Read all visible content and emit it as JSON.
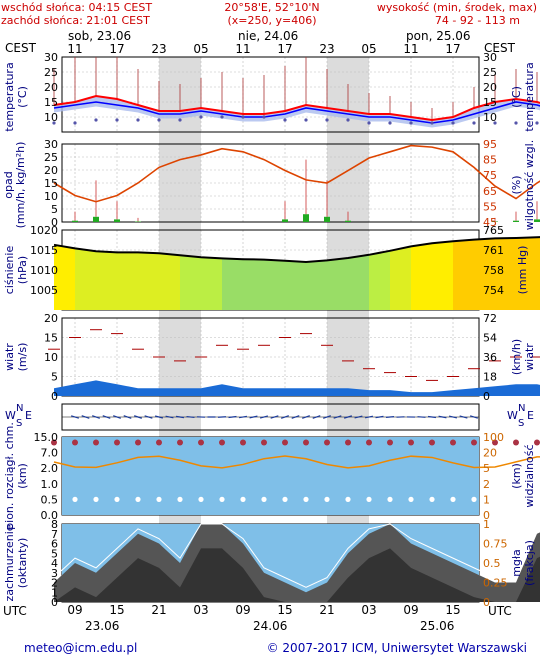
{
  "header": {
    "sunrise": "wschód słońca: 04:15 CEST",
    "sunset": "zachód słońca: 21:01 CEST",
    "coords": "20°58'E, 52°10'N",
    "grid": "(x=250,  y=406)",
    "elev_title": "wysokość (min, środek, max)",
    "elev_values": "74 - 92 - 113 m"
  },
  "time_top": {
    "tz": "CEST",
    "days": [
      "sob, 23.06",
      "nie, 24.06",
      "pon, 25.06"
    ],
    "hours": [
      "11",
      "17",
      "23",
      "05",
      "11",
      "17",
      "23",
      "05",
      "11",
      "17"
    ]
  },
  "time_bottom": {
    "tz": "UTC",
    "hours": [
      "09",
      "15",
      "21",
      "03",
      "09",
      "15",
      "21",
      "03",
      "09",
      "15"
    ],
    "dates": [
      "23.06",
      "24.06",
      "25.06"
    ]
  },
  "panels": {
    "temperature": {
      "label_left": "temperatura",
      "unit_left": "(°C)",
      "label_right": "temperatura",
      "unit_right": "(°C)",
      "ticks": [
        "30",
        "25",
        "20",
        "15",
        "10"
      ]
    },
    "precip": {
      "label_left": "opad",
      "unit_left": "(mm/h, kg/m²h)",
      "label_right": "wilgotność wzgl.",
      "unit_right": "(%)",
      "ticks_left": [
        "30",
        "25",
        "20",
        "15",
        "10",
        "5",
        "0"
      ],
      "ticks_right": [
        "95",
        "85",
        "75",
        "65",
        "55",
        "45"
      ]
    },
    "pressure": {
      "label_left": "ciśnienie",
      "unit_left": "(hPa)",
      "label_right": "(mm Hg)",
      "ticks_left": [
        "1020",
        "1015",
        "1010",
        "1005"
      ],
      "ticks_right": [
        "765",
        "761",
        "758",
        "754"
      ]
    },
    "wind": {
      "label_left": "wiatr",
      "unit_left": "(m/s)",
      "label_right": "wiatr",
      "unit_right": "(km/h)",
      "ticks_left": [
        "20",
        "15",
        "10",
        "5",
        "0"
      ],
      "ticks_right": [
        "72",
        "54",
        "36",
        "18",
        "0"
      ]
    },
    "direction": {
      "n": "N",
      "s": "S",
      "w": "W",
      "e": "E"
    },
    "visibility": {
      "label_left": "pion. rozciągł. chm.",
      "unit_left": "(km)",
      "label_right": "widzialność",
      "unit_right": "(km)",
      "ticks_left": [
        "15.0",
        "7.0",
        "2.0",
        "1.0",
        "0.5",
        "0.0"
      ],
      "ticks_right": [
        "100",
        "20",
        "5",
        "2",
        "1",
        "0"
      ]
    },
    "clouds": {
      "label_left": "zachmurzenie",
      "unit_left": "(oktanty)",
      "label_right": "(frakcja)",
      "unit_right": "mgła",
      "ticks_left": [
        "8",
        "7",
        "6",
        "5",
        "4",
        "3",
        "2",
        "1",
        "0"
      ],
      "ticks_right": [
        "1",
        "0.75",
        "0.5",
        "0.25",
        "0"
      ]
    }
  },
  "footer": {
    "email": "meteo@icm.edu.pl",
    "copyright": "© 2007-2017 ICM, Uniwersytet Warszawski"
  },
  "colors": {
    "night": "#dcdcdc",
    "temp": "#ff0000",
    "dew": "#0000ff",
    "pressure_line": "#000000",
    "humidity": "#dd4400",
    "wind_fill": "#1a6bd6",
    "vis_bg": "#7fbfe8"
  },
  "chart_data": {
    "type": "line",
    "x": [
      6,
      9,
      12,
      15,
      18,
      21,
      24,
      27,
      30,
      33,
      36,
      39,
      42,
      45,
      48,
      51,
      54,
      57,
      60,
      63,
      66,
      69,
      72,
      75,
      78
    ],
    "x_unit": "hours since 23.06 00 UTC",
    "series": [
      {
        "key": "temperature",
        "values": [
          14,
          15,
          17,
          16,
          14,
          12,
          12,
          13,
          12,
          11,
          11,
          12,
          14,
          13,
          12,
          11,
          11,
          10,
          9,
          10,
          13,
          15,
          16,
          15,
          13
        ]
      },
      {
        "key": "temperature_min",
        "values": [
          13,
          14,
          15,
          14,
          13,
          11,
          11,
          12,
          11,
          10,
          10,
          11,
          13,
          12,
          11,
          10,
          10,
          9,
          8,
          9,
          11,
          13,
          15,
          14,
          12
        ]
      },
      {
        "key": "dew_point",
        "values": [
          8,
          8,
          9,
          9,
          9,
          9,
          9,
          10,
          10,
          10,
          10,
          9,
          9,
          9,
          9,
          8,
          8,
          8,
          8,
          8,
          8,
          8,
          8,
          8,
          8
        ]
      },
      {
        "key": "relative_humidity",
        "values": [
          70,
          62,
          58,
          62,
          70,
          80,
          85,
          88,
          92,
          90,
          85,
          78,
          72,
          70,
          78,
          86,
          90,
          94,
          93,
          90,
          80,
          68,
          60,
          70,
          78
        ]
      },
      {
        "key": "precipitation",
        "values": [
          0,
          0.5,
          2,
          1,
          0.2,
          0,
          0,
          0,
          0,
          0,
          0,
          1,
          3,
          2,
          0.5,
          0,
          0,
          0,
          0,
          0,
          0,
          0.2,
          0.5,
          1,
          1
        ]
      },
      {
        "key": "pressure",
        "values": [
          1016.3,
          1015.4,
          1014.7,
          1014.4,
          1014.4,
          1014.2,
          1013.7,
          1013.2,
          1012.9,
          1012.7,
          1012.6,
          1012.3,
          1012.0,
          1012.4,
          1013.0,
          1013.8,
          1014.8,
          1015.9,
          1016.7,
          1017.2,
          1017.6,
          1017.9,
          1018.0,
          1018.2,
          1018.4
        ]
      },
      {
        "key": "wind_speed",
        "values": [
          2,
          3,
          4,
          3,
          2,
          2,
          2,
          2,
          3,
          2,
          2,
          2,
          2,
          2,
          2,
          1.5,
          1.5,
          1,
          1,
          1.5,
          2,
          2.5,
          3,
          3,
          2
        ]
      },
      {
        "key": "wind_gust",
        "values": [
          12,
          15,
          17,
          16,
          12,
          10,
          9,
          10,
          13,
          12,
          13,
          15,
          16,
          13,
          9,
          7,
          6,
          5,
          4,
          5,
          7,
          9,
          10,
          10,
          8
        ]
      },
      {
        "key": "cloud_cover",
        "values": [
          2,
          4,
          3,
          5,
          7,
          6,
          4,
          8,
          8,
          6,
          3,
          2,
          1,
          2,
          5,
          7,
          8,
          6,
          5,
          4,
          3,
          2,
          2,
          7,
          8
        ]
      }
    ],
    "ylim_temperature": [
      5,
      30
    ],
    "ylim_precip": [
      0,
      30
    ],
    "ylim_humidity": [
      45,
      95
    ],
    "ylim_pressure": [
      1000,
      1020
    ],
    "ylim_wind": [
      0,
      20
    ],
    "ylim_clouds": [
      0,
      8
    ],
    "grid": true
  }
}
